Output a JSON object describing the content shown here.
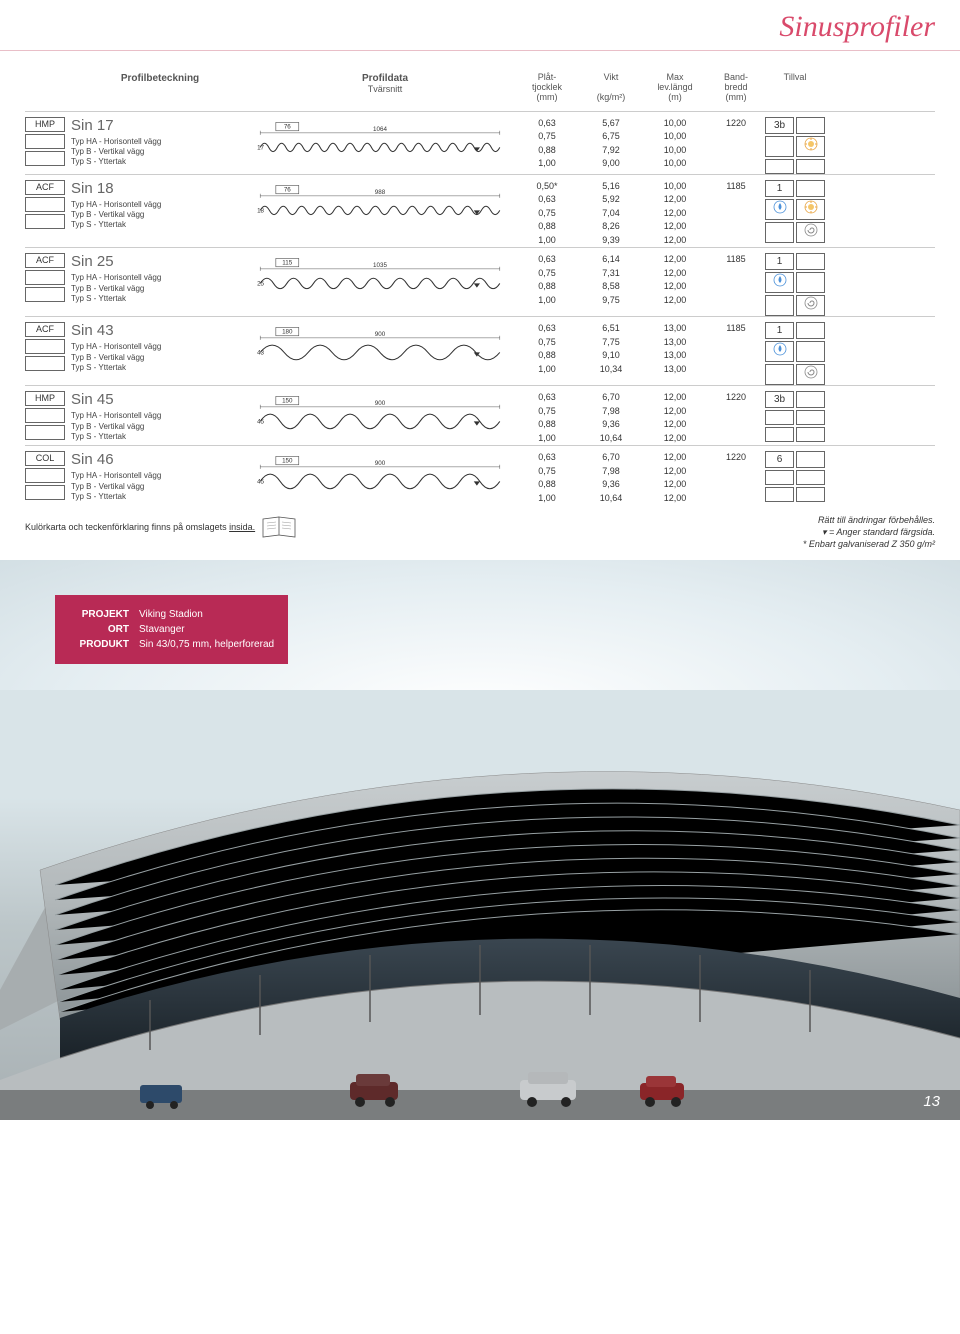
{
  "page": {
    "title": "Sinusprofiler",
    "side_title": "Sinusprofiler",
    "page_number": "13"
  },
  "headers": {
    "profilbeteckning": "Profilbeteckning",
    "profildata": "Profildata",
    "tvarnsnitt": "Tvärsnitt",
    "plattjocklek": "Plåt-\ntjocklek\n(mm)",
    "vikt": "Vikt\n\n(kg/m²)",
    "maxlev": "Max\nlev.längd\n(m)",
    "bandbredd": "Band-\nbredd\n(mm)",
    "tillval": "Tillval"
  },
  "typ_lines": {
    "ha": "Typ HA - Horisontell vägg",
    "b": "Typ B   - Vertikal vägg",
    "s": "Typ S   - Yttertak"
  },
  "products": [
    {
      "cat": "HMP",
      "name": "Sin 17",
      "svg": {
        "dim1": "76",
        "width": "1064",
        "height": "17",
        "waves": 14,
        "amp": 4,
        "period": 17
      },
      "tjocklek": [
        "0,63",
        "0,75",
        "0,88",
        "1,00"
      ],
      "vikt": [
        "5,67",
        "6,75",
        "7,92",
        "9,00"
      ],
      "maxlev": [
        "10,00",
        "10,00",
        "10,00",
        "10,00"
      ],
      "bandbredd": "1220",
      "tillval_label": "3b",
      "icons": [
        "",
        "sun",
        "",
        ""
      ]
    },
    {
      "cat": "ACF",
      "name": "Sin 18",
      "svg": {
        "dim1": "76",
        "width": "988",
        "height": "18",
        "waves": 13,
        "amp": 4,
        "period": 18
      },
      "tjocklek": [
        "0,50*",
        "0,63",
        "0,75",
        "0,88",
        "1,00"
      ],
      "vikt": [
        "5,16",
        "5,92",
        "7,04",
        "8,26",
        "9,39"
      ],
      "maxlev": [
        "10,00",
        "12,00",
        "12,00",
        "12,00",
        "12,00"
      ],
      "bandbredd": "1185",
      "tillval_label": "1",
      "icons": [
        "drop",
        "sun",
        "",
        "spiral"
      ]
    },
    {
      "cat": "ACF",
      "name": "Sin 25",
      "svg": {
        "dim1": "115",
        "width": "1035",
        "height": "25",
        "waves": 9,
        "amp": 5,
        "period": 26
      },
      "tjocklek": [
        "0,63",
        "0,75",
        "0,88",
        "1,00"
      ],
      "vikt": [
        "6,14",
        "7,31",
        "8,58",
        "9,75"
      ],
      "maxlev": [
        "12,00",
        "12,00",
        "12,00",
        "12,00"
      ],
      "bandbredd": "1185",
      "tillval_label": "1",
      "icons": [
        "drop",
        "",
        "",
        "spiral"
      ]
    },
    {
      "cat": "ACF",
      "name": "Sin 43",
      "svg": {
        "dim1": "180",
        "width": "900",
        "height": "43",
        "waves": 5,
        "amp": 7,
        "period": 45
      },
      "tjocklek": [
        "0,63",
        "0,75",
        "0,88",
        "1,00"
      ],
      "vikt": [
        "6,51",
        "7,75",
        "9,10",
        "10,34"
      ],
      "maxlev": [
        "13,00",
        "13,00",
        "13,00",
        "13,00"
      ],
      "bandbredd": "1185",
      "tillval_label": "1",
      "icons": [
        "drop",
        "",
        "",
        "spiral"
      ]
    },
    {
      "cat": "HMP",
      "name": "Sin 45",
      "svg": {
        "dim1": "150",
        "width": "900",
        "height": "45",
        "waves": 6,
        "amp": 7,
        "period": 38
      },
      "tjocklek": [
        "0,63",
        "0,75",
        "0,88",
        "1,00"
      ],
      "vikt": [
        "6,70",
        "7,98",
        "9,36",
        "10,64"
      ],
      "maxlev": [
        "12,00",
        "12,00",
        "12,00",
        "12,00"
      ],
      "bandbredd": "1220",
      "tillval_label": "3b",
      "icons": [
        "",
        "",
        "",
        ""
      ]
    },
    {
      "cat": "COL",
      "name": "Sin 46",
      "svg": {
        "dim1": "150",
        "width": "900",
        "height": "45",
        "waves": 6,
        "amp": 7,
        "period": 38
      },
      "tjocklek": [
        "0,63",
        "0,75",
        "0,88",
        "1,00"
      ],
      "vikt": [
        "6,70",
        "7,98",
        "9,36",
        "10,64"
      ],
      "maxlev": [
        "12,00",
        "12,00",
        "12,00",
        "12,00"
      ],
      "bandbredd": "1220",
      "tillval_label": "6",
      "icons": [
        "",
        "",
        "",
        ""
      ]
    }
  ],
  "footer": {
    "kulor_text": "Kulörkarta och teckenförklaring finns på omslagets ",
    "kulor_underline": "insida.",
    "note1": "Rätt till ändringar förbehålles.",
    "note2": "▾ = Anger standard färgsida.",
    "note3": "* Enbart galvaniserad Z 350 g/m²"
  },
  "infobox": {
    "projekt_label": "PROJEKT",
    "projekt_val": "Viking Stadion",
    "ort_label": "ORT",
    "ort_val": "Stavanger",
    "produkt_label": "PRODUKT",
    "produkt_val": "Sin 43/0,75 mm, helperforerad"
  },
  "colors": {
    "accent": "#d94a6b",
    "infobox_bg": "#b82a55"
  }
}
